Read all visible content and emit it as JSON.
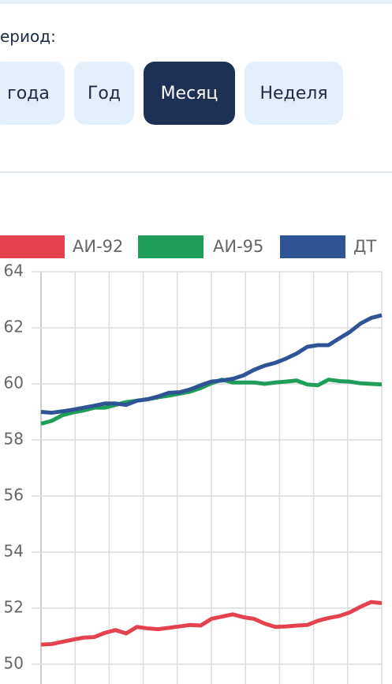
{
  "ui": {
    "period_label": "ериод:",
    "buttons": [
      "года",
      "Год",
      "Месяц",
      "Неделя"
    ],
    "active_button": 2
  },
  "chart_data": {
    "type": "line",
    "categories": [
      null,
      null,
      null,
      null,
      null,
      null,
      null,
      null,
      null,
      null,
      null,
      null,
      null,
      null,
      null,
      null,
      null,
      null,
      null,
      null,
      null,
      null,
      null,
      null,
      null,
      null,
      null,
      null,
      null,
      null,
      null,
      null,
      null
    ],
    "series": [
      {
        "name": "АИ-92",
        "color": "#e5424f",
        "values": [
          50.7,
          50.72,
          50.8,
          50.88,
          50.95,
          50.97,
          51.12,
          51.22,
          51.1,
          51.33,
          51.28,
          51.25,
          51.3,
          51.35,
          51.4,
          51.38,
          51.62,
          51.7,
          51.78,
          51.68,
          51.62,
          51.45,
          51.33,
          51.35,
          51.38,
          51.4,
          51.55,
          51.65,
          51.72,
          51.85,
          52.05,
          52.22,
          52.18
        ]
      },
      {
        "name": "АИ-95",
        "color": "#1f9e5a",
        "values": [
          58.58,
          58.68,
          58.88,
          58.98,
          59.05,
          59.15,
          59.15,
          59.25,
          59.35,
          59.4,
          59.45,
          59.52,
          59.58,
          59.65,
          59.72,
          59.85,
          60.02,
          60.15,
          60.05,
          60.05,
          60.05,
          60.0,
          60.05,
          60.08,
          60.12,
          59.98,
          59.95,
          60.15,
          60.1,
          60.08,
          60.02,
          60.0,
          59.98
        ]
      },
      {
        "name": "ДТ",
        "color": "#2f5495",
        "values": [
          59.0,
          58.97,
          59.02,
          59.08,
          59.15,
          59.22,
          59.3,
          59.3,
          59.25,
          59.4,
          59.45,
          59.55,
          59.68,
          59.7,
          59.8,
          59.95,
          60.08,
          60.12,
          60.18,
          60.3,
          60.5,
          60.65,
          60.75,
          60.9,
          61.08,
          61.32,
          61.38,
          61.38,
          61.62,
          61.85,
          62.15,
          62.35,
          62.45
        ]
      }
    ],
    "ylim": [
      50,
      64
    ],
    "yticks": [
      50,
      52,
      54,
      56,
      58,
      60,
      62,
      64
    ],
    "grid": true
  }
}
